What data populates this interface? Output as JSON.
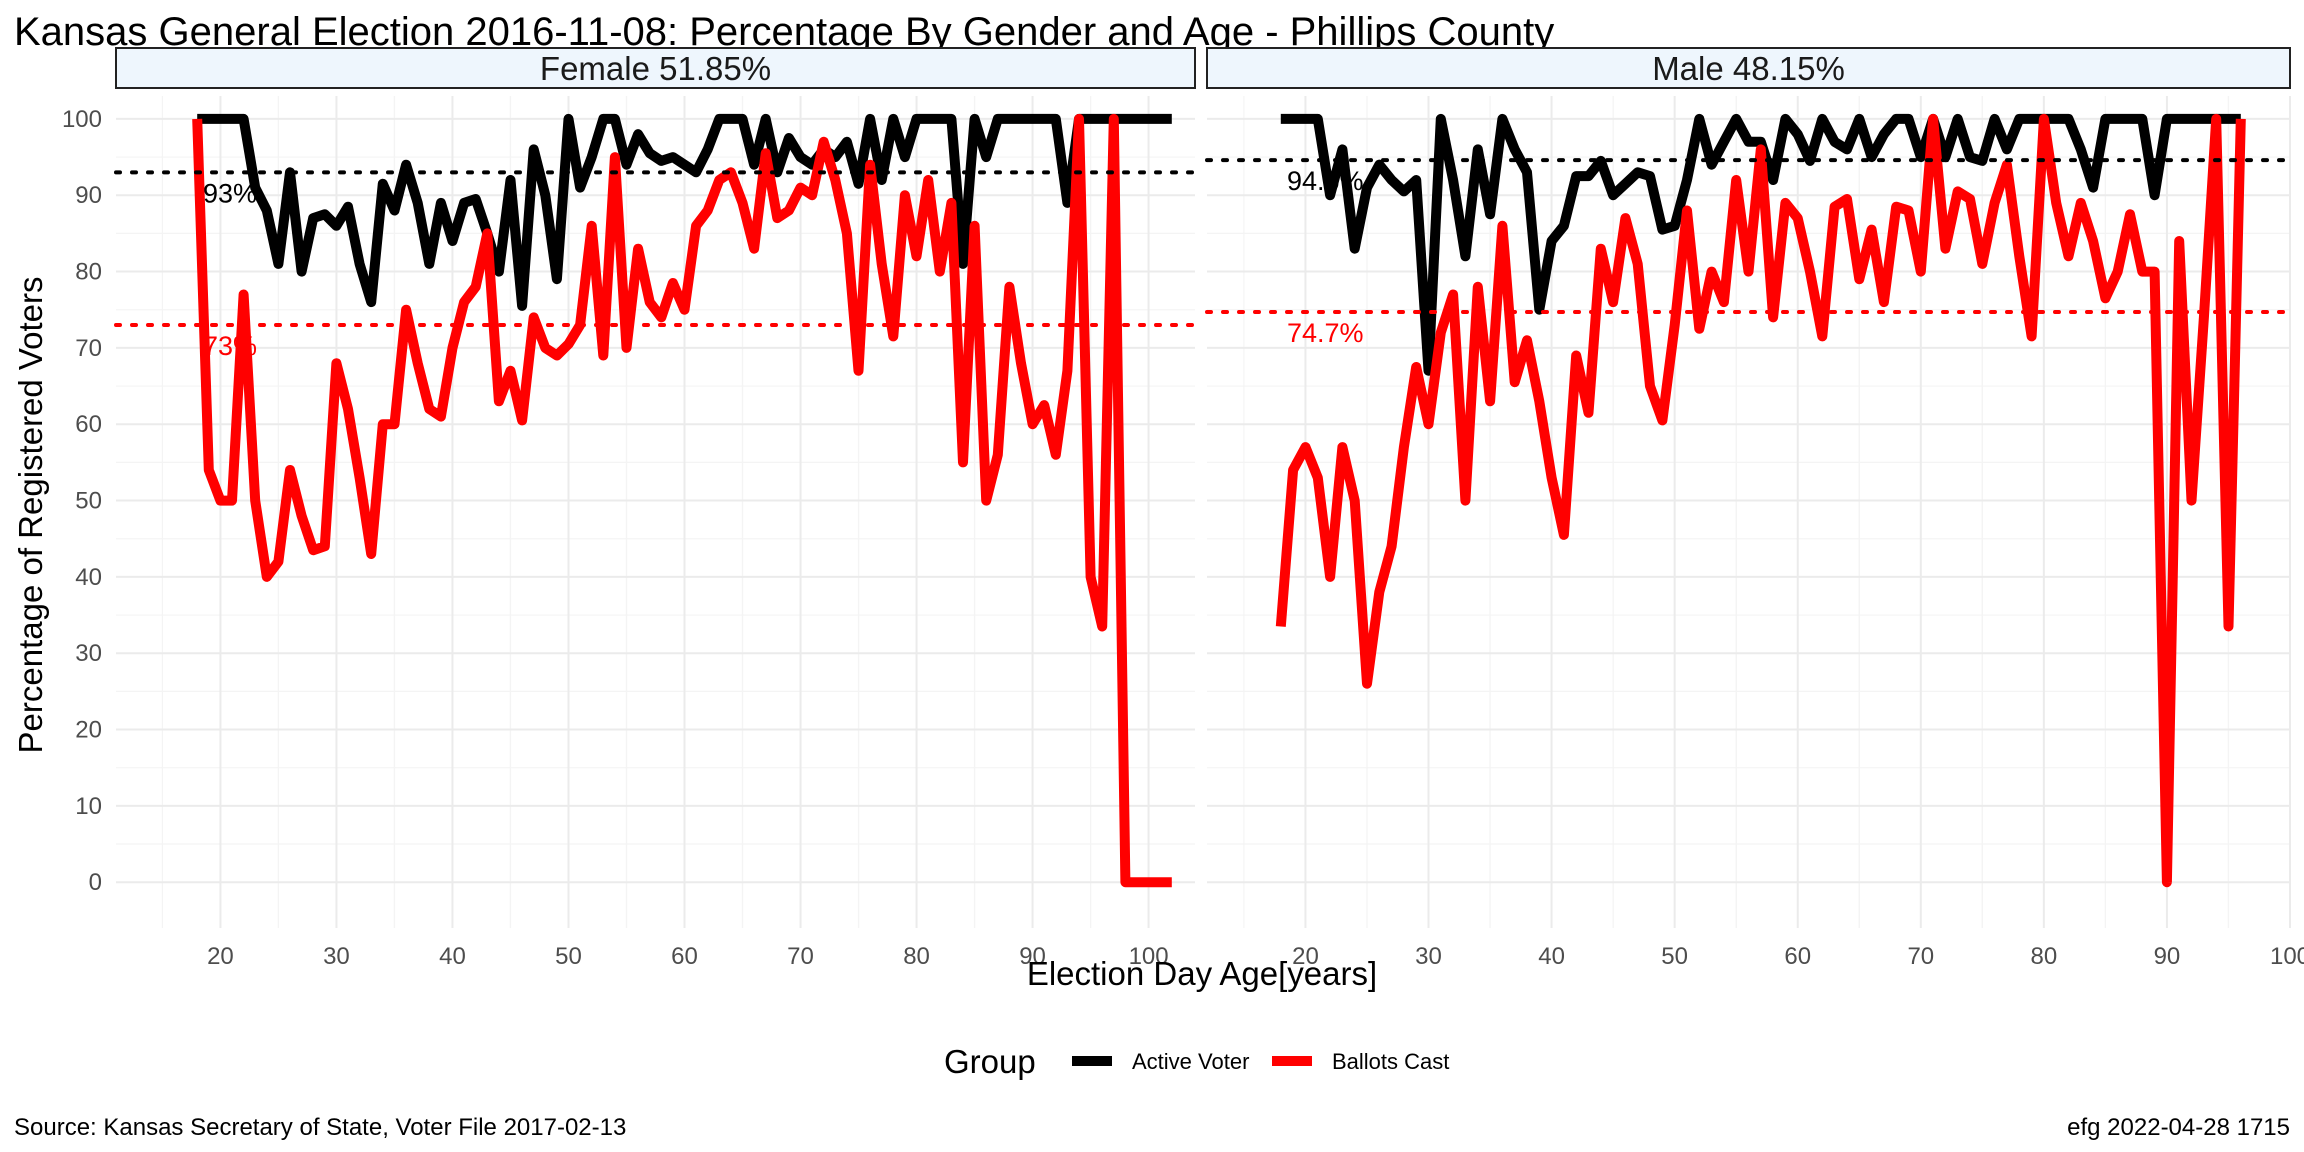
{
  "chart_data": {
    "type": "line",
    "title": "Kansas General Election 2016-11-08:  Percentage By Gender and Age - Phillips County",
    "xlabel": "Election Day Age[years]",
    "ylabel": "Percentage of Registered Voters",
    "ylim": [
      -6,
      103
    ],
    "yticks": [
      0,
      10,
      20,
      30,
      40,
      50,
      60,
      70,
      80,
      90,
      100
    ],
    "xticks": [
      20,
      30,
      40,
      50,
      60,
      70,
      80,
      90,
      100
    ],
    "grid": true,
    "legend": {
      "title": "Group",
      "position": "bottom",
      "items": [
        {
          "label": "Active Voter",
          "color": "#000000"
        },
        {
          "label": "Ballots Cast",
          "color": "#ff0000"
        }
      ]
    },
    "caption_left": "Source:  Kansas Secretary of State, Voter File  2017-02-13",
    "caption_right": "efg 2022-04-28 1715",
    "panels": [
      {
        "strip": "Female 51.85%",
        "xlim": [
          11,
          104
        ],
        "series": [
          {
            "name": "Active Voter",
            "color": "#000000",
            "x": [
              18,
              19,
              20,
              21,
              22,
              23,
              24,
              25,
              26,
              27,
              28,
              29,
              30,
              31,
              32,
              33,
              34,
              35,
              36,
              37,
              38,
              39,
              40,
              41,
              42,
              43,
              44,
              45,
              46,
              47,
              48,
              49,
              50,
              51,
              52,
              53,
              54,
              55,
              56,
              57,
              58,
              59,
              60,
              61,
              62,
              63,
              64,
              65,
              66,
              67,
              68,
              69,
              70,
              71,
              72,
              73,
              74,
              75,
              76,
              77,
              78,
              79,
              80,
              81,
              82,
              83,
              84,
              85,
              86,
              87,
              88,
              89,
              90,
              91,
              92,
              93,
              94,
              95,
              96,
              97,
              98,
              99,
              100,
              101,
              102
            ],
            "y": [
              100,
              100,
              100,
              100,
              100,
              91,
              88,
              81,
              93,
              80,
              87,
              87.5,
              86,
              88.5,
              81,
              76,
              91.5,
              88,
              94,
              89,
              81,
              89,
              84,
              89,
              89.5,
              85,
              80,
              92,
              75.5,
              96,
              90,
              79,
              100,
              91,
              95,
              100,
              100,
              94,
              98,
              95.5,
              94.5,
              95,
              94,
              93,
              96,
              100,
              100,
              100,
              94,
              100,
              93,
              97.5,
              95,
              94,
              96,
              95,
              97,
              91.5,
              100,
              92,
              100,
              95,
              100,
              100,
              100,
              100,
              81,
              100,
              95,
              100,
              100,
              100,
              100,
              100,
              100,
              89,
              100,
              100,
              100,
              100,
              100,
              100,
              100,
              100,
              100
            ]
          },
          {
            "name": "Ballots Cast",
            "color": "#ff0000",
            "x": [
              18,
              19,
              20,
              21,
              22,
              23,
              24,
              25,
              26,
              27,
              28,
              29,
              30,
              31,
              32,
              33,
              34,
              35,
              36,
              37,
              38,
              39,
              40,
              41,
              42,
              43,
              44,
              45,
              46,
              47,
              48,
              49,
              50,
              51,
              52,
              53,
              54,
              55,
              56,
              57,
              58,
              59,
              60,
              61,
              62,
              63,
              64,
              65,
              66,
              67,
              68,
              69,
              70,
              71,
              72,
              73,
              74,
              75,
              76,
              77,
              78,
              79,
              80,
              81,
              82,
              83,
              84,
              85,
              86,
              87,
              88,
              89,
              90,
              91,
              92,
              93,
              94,
              95,
              96,
              97,
              98,
              99,
              100,
              101,
              102
            ],
            "y": [
              100,
              54,
              50,
              50,
              77,
              50,
              40,
              42,
              54,
              48,
              43.5,
              44,
              68,
              62,
              53,
              43,
              60,
              60,
              75,
              68,
              62,
              61,
              70,
              76,
              78,
              85,
              63,
              67,
              60.5,
              74,
              70,
              69,
              70.5,
              73,
              86,
              69,
              95,
              70,
              83,
              76,
              74,
              78.5,
              75,
              86,
              88,
              92,
              93,
              89,
              83,
              95.5,
              87,
              88,
              91,
              90,
              97,
              92,
              85,
              67,
              94,
              81,
              71.5,
              90,
              82,
              92,
              80,
              89,
              55,
              86,
              50,
              56,
              78,
              68,
              60,
              62.5,
              56,
              67,
              100,
              40,
              33.5,
              100,
              0,
              0,
              0,
              0,
              0
            ]
          }
        ],
        "reference_lines": [
          {
            "label": "93%",
            "y": 93,
            "color": "#000000"
          },
          {
            "label": "73%",
            "y": 73,
            "color": "#ff0000"
          }
        ]
      },
      {
        "strip": "Male 48.15%",
        "xlim": [
          12,
          100
        ],
        "series": [
          {
            "name": "Active Voter",
            "color": "#000000",
            "x": [
              18,
              19,
              20,
              21,
              22,
              23,
              24,
              25,
              26,
              27,
              28,
              29,
              30,
              31,
              32,
              33,
              34,
              35,
              36,
              37,
              38,
              39,
              40,
              41,
              42,
              43,
              44,
              45,
              46,
              47,
              48,
              49,
              50,
              51,
              52,
              53,
              54,
              55,
              56,
              57,
              58,
              59,
              60,
              61,
              62,
              63,
              64,
              65,
              66,
              67,
              68,
              69,
              70,
              71,
              72,
              73,
              74,
              75,
              76,
              77,
              78,
              79,
              80,
              81,
              82,
              83,
              84,
              85,
              86,
              87,
              88,
              89,
              90,
              91,
              92,
              93,
              94,
              95,
              96
            ],
            "y": [
              100,
              100,
              100,
              100,
              90,
              96,
              83,
              91,
              94,
              92,
              90.5,
              92,
              67,
              100,
              92,
              82,
              96,
              87.5,
              100,
              96,
              93,
              75,
              84,
              86,
              92.5,
              92.5,
              94.5,
              90,
              91.5,
              93,
              92.5,
              85.5,
              86,
              92,
              100,
              94,
              97,
              100,
              97,
              97,
              92,
              100,
              98,
              94.5,
              100,
              97,
              96,
              100,
              95,
              98,
              100,
              100,
              95,
              100,
              95,
              100,
              95,
              94.5,
              100,
              96,
              100,
              100,
              100,
              100,
              100,
              96,
              91,
              100,
              100,
              100,
              100,
              90,
              100,
              100,
              100,
              100,
              100,
              100,
              100
            ]
          },
          {
            "name": "Ballots Cast",
            "color": "#ff0000",
            "x": [
              18,
              19,
              20,
              21,
              22,
              23,
              24,
              25,
              26,
              27,
              28,
              29,
              30,
              31,
              32,
              33,
              34,
              35,
              36,
              37,
              38,
              39,
              40,
              41,
              42,
              43,
              44,
              45,
              46,
              47,
              48,
              49,
              50,
              51,
              52,
              53,
              54,
              55,
              56,
              57,
              58,
              59,
              60,
              61,
              62,
              63,
              64,
              65,
              66,
              67,
              68,
              69,
              70,
              71,
              72,
              73,
              74,
              75,
              76,
              77,
              78,
              79,
              80,
              81,
              82,
              83,
              84,
              85,
              86,
              87,
              88,
              89,
              90,
              91,
              92,
              93,
              94,
              95,
              96
            ],
            "y": [
              33.5,
              54,
              57,
              53,
              40,
              57,
              50,
              26,
              38,
              44,
              57,
              67.5,
              60,
              72,
              77,
              50,
              78,
              63,
              86,
              65.5,
              71,
              63,
              53,
              45.5,
              69,
              61.5,
              83,
              76,
              87,
              81,
              65,
              60.5,
              73,
              88,
              72.5,
              80,
              76,
              92,
              80,
              96,
              74,
              89,
              87,
              80,
              71.5,
              88.5,
              89.5,
              79,
              85.5,
              76,
              88.5,
              88,
              80,
              100,
              83,
              90.5,
              89.5,
              81,
              89,
              94,
              82,
              71.5,
              100,
              89,
              82,
              89,
              84,
              76.5,
              80,
              87.5,
              80,
              80,
              0,
              84,
              50,
              74,
              100,
              33.5,
              100
            ]
          }
        ],
        "reference_lines": [
          {
            "label": "94.6%",
            "y": 94.6,
            "color": "#000000"
          },
          {
            "label": "74.7%",
            "y": 74.7,
            "color": "#ff0000"
          }
        ]
      }
    ]
  }
}
